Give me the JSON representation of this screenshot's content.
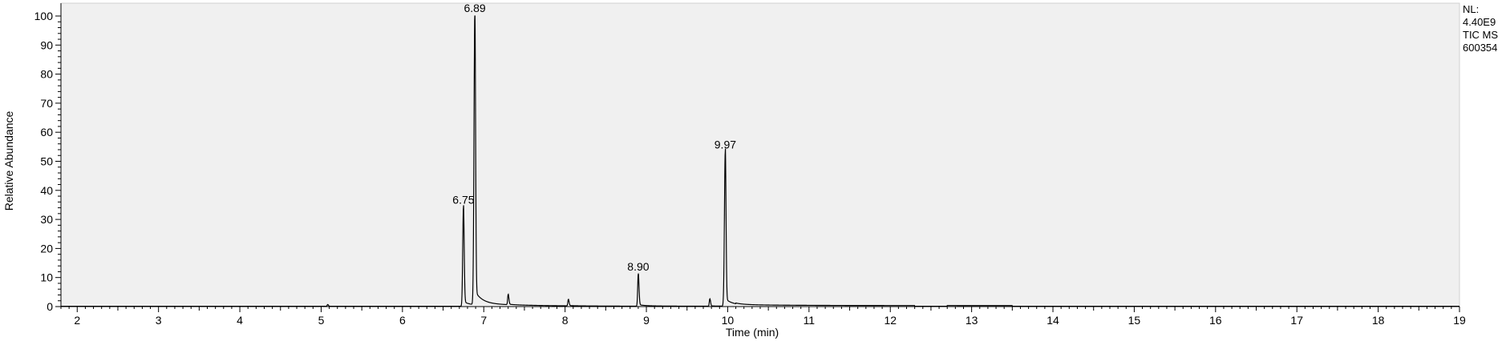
{
  "info": {
    "nl_label": "NL:",
    "nl_value": "4.40E9",
    "trace": "TIC  MS",
    "file": "600354"
  },
  "chart_data": {
    "type": "line",
    "xlabel": "Time (min)",
    "ylabel": "Relative Abundance",
    "xlim": [
      1.8,
      19.0
    ],
    "ylim": [
      0,
      100
    ],
    "x_ticks": [
      2,
      3,
      4,
      5,
      6,
      7,
      8,
      9,
      10,
      11,
      12,
      13,
      14,
      15,
      16,
      17,
      18,
      19
    ],
    "y_ticks": [
      0,
      10,
      20,
      30,
      40,
      50,
      60,
      70,
      80,
      90,
      100
    ],
    "grid": false,
    "peaks": [
      {
        "rt": 5.08,
        "height": 0.6,
        "label": ""
      },
      {
        "rt": 6.75,
        "height": 34,
        "label": "6.75"
      },
      {
        "rt": 6.89,
        "height": 100,
        "label": "6.89"
      },
      {
        "rt": 7.3,
        "height": 3.5,
        "label": ""
      },
      {
        "rt": 8.04,
        "height": 2.2,
        "label": ""
      },
      {
        "rt": 8.9,
        "height": 11,
        "label": "8.90"
      },
      {
        "rt": 9.78,
        "height": 2.5,
        "label": ""
      },
      {
        "rt": 9.97,
        "height": 53,
        "label": "9.97"
      }
    ]
  }
}
